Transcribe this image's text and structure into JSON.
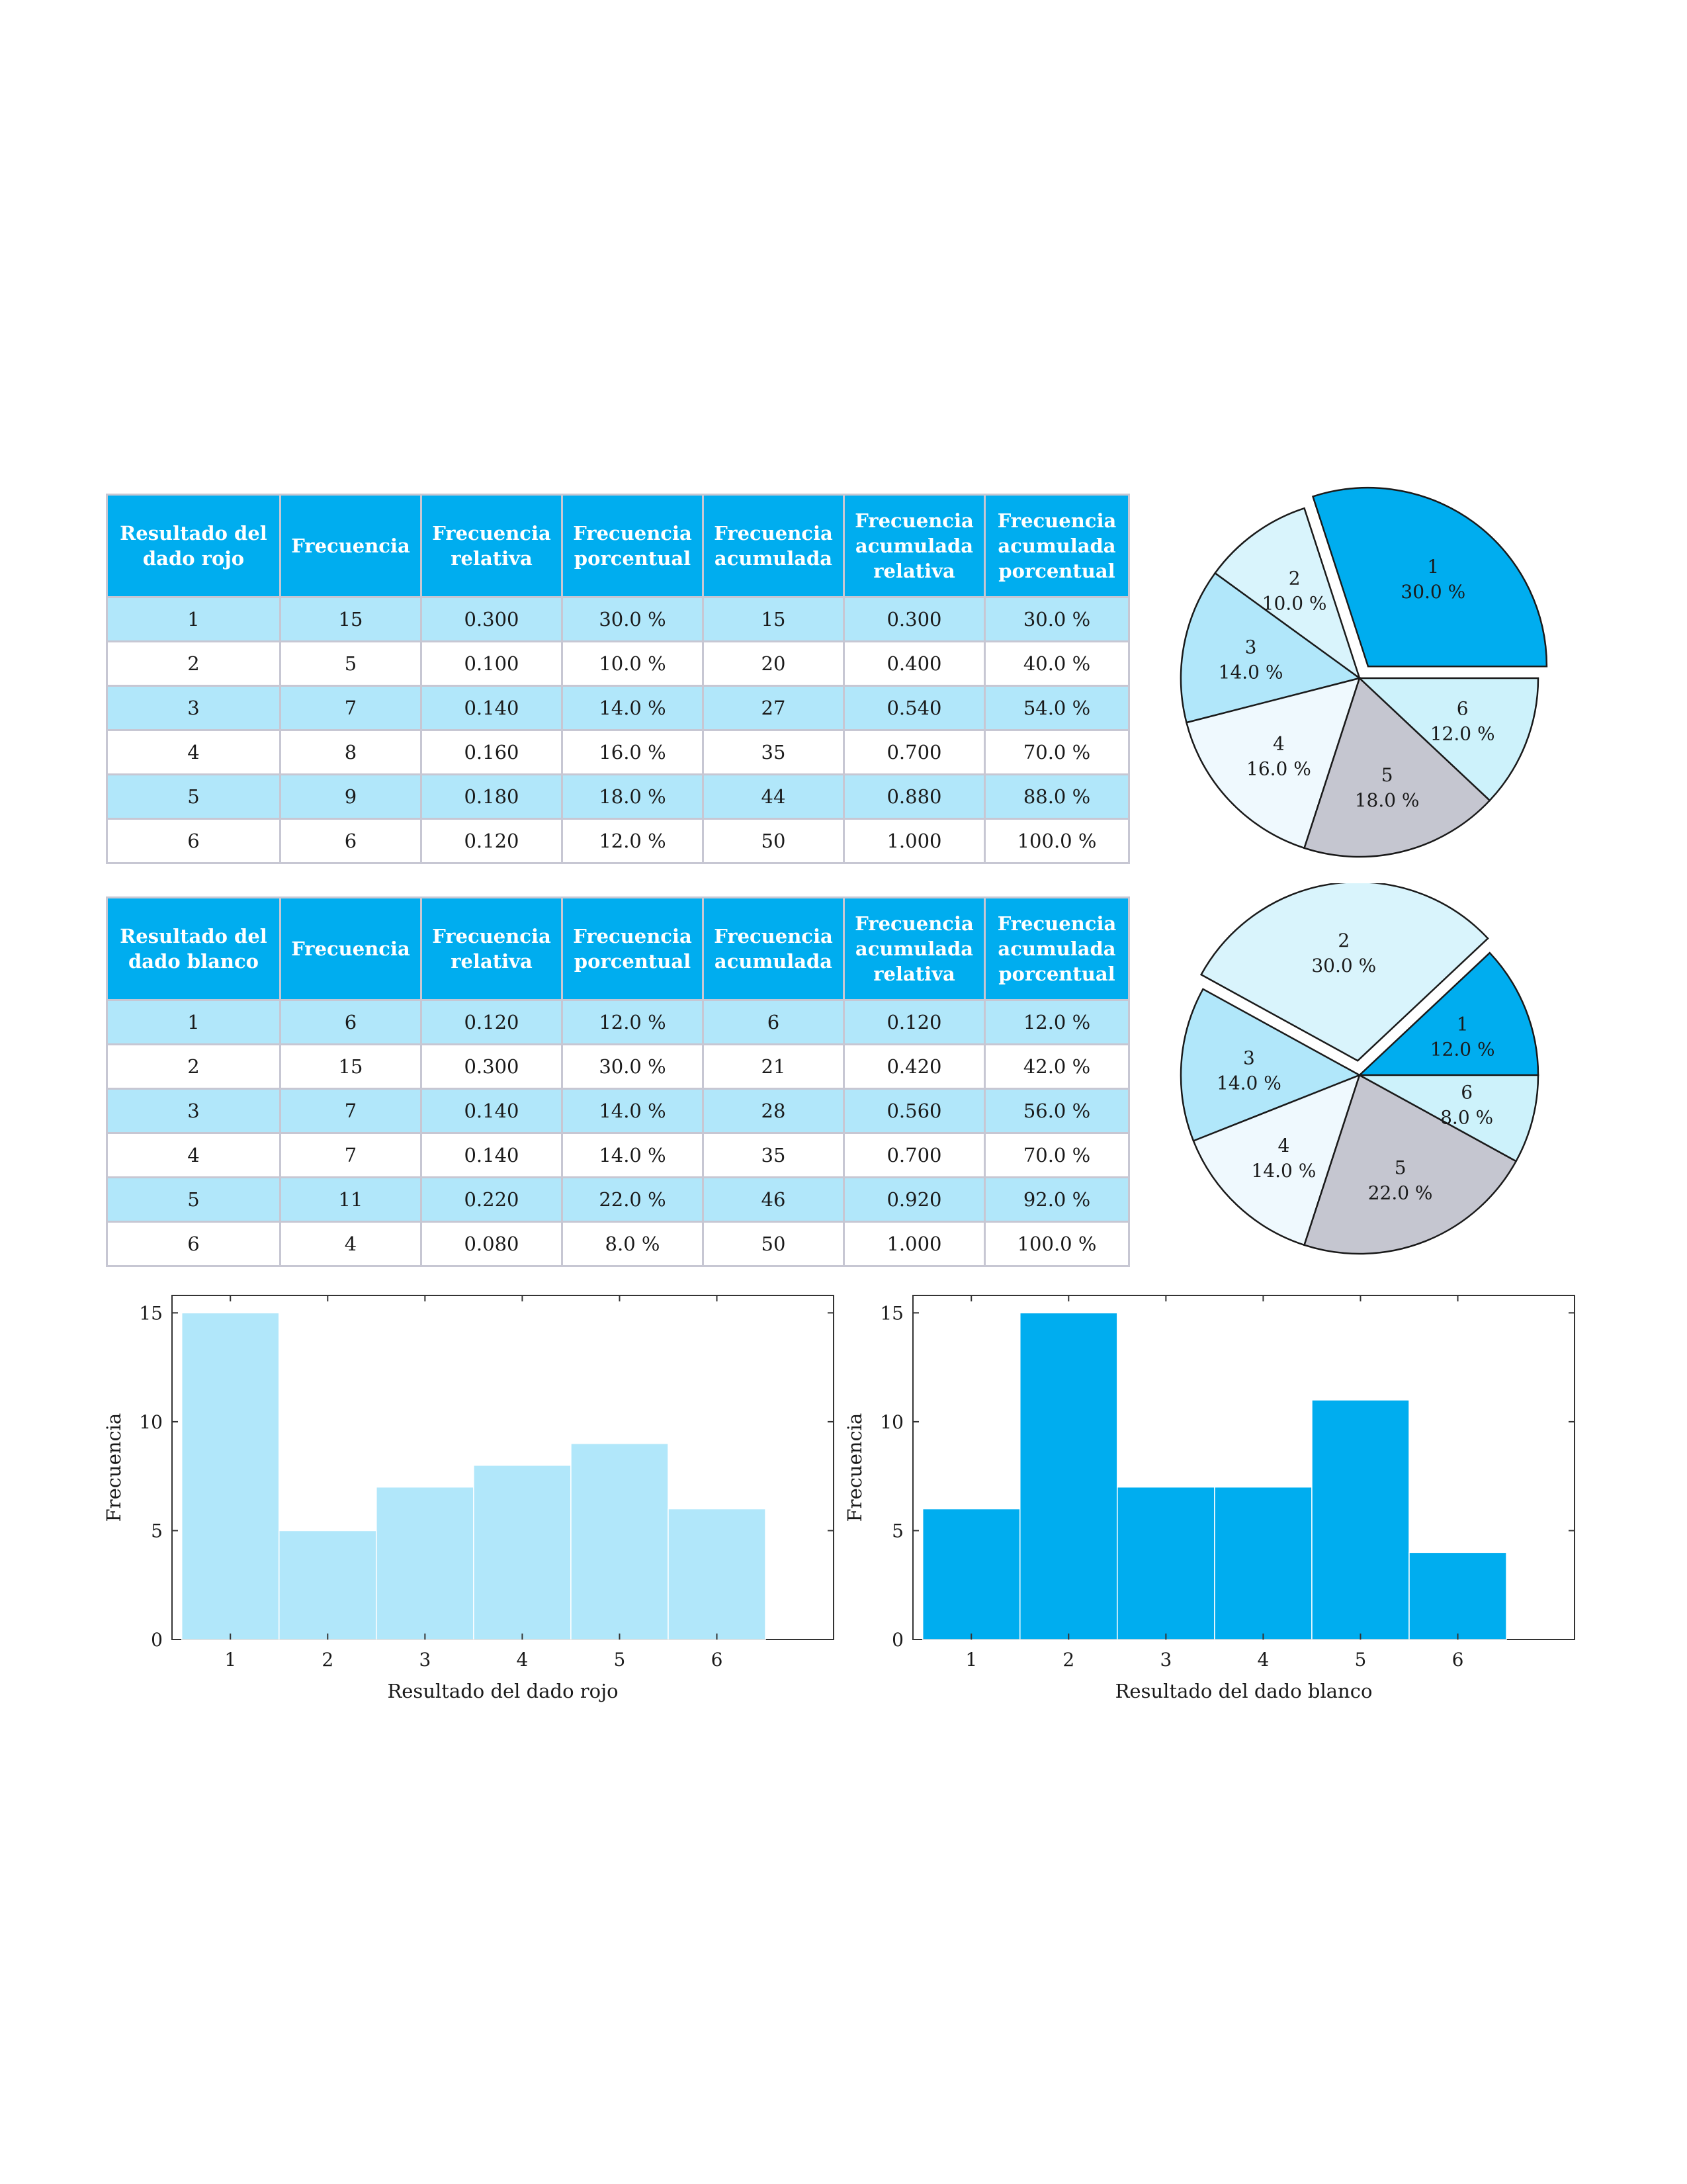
{
  "tables": [
    {
      "headers": [
        "Resultado del dado rojo",
        "Frecuencia",
        "Frecuencia relativa",
        "Frecuencia porcentual",
        "Frecuencia acumulada",
        "Frecuencia acumulada relativa",
        "Frecuencia acumulada porcentual"
      ],
      "rows": [
        [
          "1",
          "15",
          "0.300",
          "30.0 %",
          "15",
          "0.300",
          "30.0 %"
        ],
        [
          "2",
          "5",
          "0.100",
          "10.0 %",
          "20",
          "0.400",
          "40.0 %"
        ],
        [
          "3",
          "7",
          "0.140",
          "14.0 %",
          "27",
          "0.540",
          "54.0 %"
        ],
        [
          "4",
          "8",
          "0.160",
          "16.0 %",
          "35",
          "0.700",
          "70.0 %"
        ],
        [
          "5",
          "9",
          "0.180",
          "18.0 %",
          "44",
          "0.880",
          "88.0 %"
        ],
        [
          "6",
          "6",
          "0.120",
          "12.0 %",
          "50",
          "1.000",
          "100.0 %"
        ]
      ]
    },
    {
      "headers": [
        "Resultado del dado blanco",
        "Frecuencia",
        "Frecuencia relativa",
        "Frecuencia porcentual",
        "Frecuencia acumulada",
        "Frecuencia acumulada relativa",
        "Frecuencia acumulada porcentual"
      ],
      "rows": [
        [
          "1",
          "6",
          "0.120",
          "12.0 %",
          "6",
          "0.120",
          "12.0 %"
        ],
        [
          "2",
          "15",
          "0.300",
          "30.0 %",
          "21",
          "0.420",
          "42.0 %"
        ],
        [
          "3",
          "7",
          "0.140",
          "14.0 %",
          "28",
          "0.560",
          "56.0 %"
        ],
        [
          "4",
          "7",
          "0.140",
          "14.0 %",
          "35",
          "0.700",
          "70.0 %"
        ],
        [
          "5",
          "11",
          "0.220",
          "22.0 %",
          "46",
          "0.920",
          "92.0 %"
        ],
        [
          "6",
          "4",
          "0.080",
          "8.0 %",
          "50",
          "1.000",
          "100.0 %"
        ]
      ]
    }
  ],
  "colors": {
    "header": "#00adef",
    "row_alt": "#b1e7fa",
    "grid": "#c7c7d3",
    "bar_red": "#b1e7fa",
    "bar_white": "#00adef"
  },
  "chart_data": [
    {
      "type": "pie",
      "labels": [
        "1",
        "2",
        "3",
        "4",
        "5",
        "6"
      ],
      "values": [
        30.0,
        10.0,
        14.0,
        16.0,
        18.0,
        12.0
      ],
      "value_labels": [
        "30.0 %",
        "10.0 %",
        "14.0 %",
        "16.0 %",
        "18.0 %",
        "12.0 %"
      ],
      "exploded": [
        "1"
      ],
      "colors": [
        "#00adef",
        "#d9f4fc",
        "#b1e7fa",
        "#eff9fe",
        "#c5c6d0",
        "#cdf2fb"
      ]
    },
    {
      "type": "pie",
      "labels": [
        "1",
        "2",
        "3",
        "4",
        "5",
        "6"
      ],
      "values": [
        12.0,
        30.0,
        14.0,
        14.0,
        22.0,
        8.0
      ],
      "value_labels": [
        "12.0 %",
        "30.0 %",
        "14.0 %",
        "14.0 %",
        "22.0 %",
        "8.0 %"
      ],
      "exploded": [
        "2"
      ],
      "colors": [
        "#00adef",
        "#d9f4fc",
        "#b1e7fa",
        "#eff9fe",
        "#c5c6d0",
        "#cdf2fb"
      ]
    },
    {
      "type": "bar",
      "categories": [
        "1",
        "2",
        "3",
        "4",
        "5",
        "6"
      ],
      "values": [
        15,
        5,
        7,
        8,
        9,
        6
      ],
      "xlabel": "Resultado del dado rojo",
      "ylabel": "Frecuencia",
      "yticks": [
        0,
        5,
        10,
        15
      ],
      "ylim": [
        0,
        15.8
      ],
      "color": "#b1e7fa"
    },
    {
      "type": "bar",
      "categories": [
        "1",
        "2",
        "3",
        "4",
        "5",
        "6"
      ],
      "values": [
        6,
        15,
        7,
        7,
        11,
        4
      ],
      "xlabel": "Resultado del dado blanco",
      "ylabel": "Frecuencia",
      "yticks": [
        0,
        5,
        10,
        15
      ],
      "ylim": [
        0,
        15.8
      ],
      "color": "#00adef"
    }
  ]
}
